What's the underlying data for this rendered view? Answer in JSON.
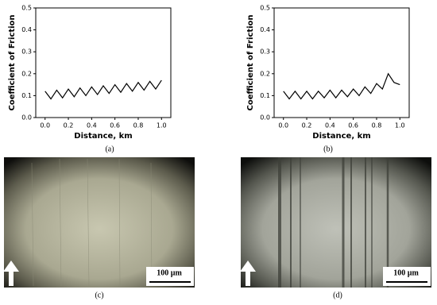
{
  "chart_data": [
    {
      "type": "line",
      "caption": "(a)",
      "xlabel": "Distance, km",
      "ylabel": "Coefficient of Friction",
      "color": "#000000",
      "x": [
        0,
        0.05,
        0.1,
        0.15,
        0.2,
        0.25,
        0.3,
        0.35,
        0.4,
        0.45,
        0.5,
        0.55,
        0.6,
        0.65,
        0.7,
        0.75,
        0.8,
        0.85,
        0.9,
        0.95,
        1.0
      ],
      "values": [
        0.12,
        0.085,
        0.125,
        0.09,
        0.13,
        0.095,
        0.135,
        0.1,
        0.14,
        0.105,
        0.145,
        0.11,
        0.15,
        0.115,
        0.155,
        0.12,
        0.16,
        0.125,
        0.165,
        0.13,
        0.17
      ],
      "xlim": [
        -0.08,
        1.08
      ],
      "ylim": [
        0,
        0.5
      ],
      "xticks": [
        {
          "value": 0,
          "label": "0.0"
        },
        0.2,
        0.4,
        0.6,
        0.8,
        {
          "value": 1,
          "label": "1.0"
        }
      ],
      "yticks": [
        {
          "value": 0,
          "label": "0.0"
        },
        0.1,
        0.2,
        0.3,
        0.4,
        0.5
      ]
    },
    {
      "type": "line",
      "caption": "(b)",
      "xlabel": "Distance, km",
      "ylabel": "Coefficient of Friction",
      "color": "#000000",
      "x": [
        0,
        0.05,
        0.1,
        0.15,
        0.2,
        0.25,
        0.3,
        0.35,
        0.4,
        0.45,
        0.5,
        0.55,
        0.6,
        0.65,
        0.7,
        0.75,
        0.8,
        0.85,
        0.9,
        0.95,
        1.0
      ],
      "values": [
        0.12,
        0.085,
        0.12,
        0.085,
        0.12,
        0.085,
        0.12,
        0.09,
        0.125,
        0.09,
        0.125,
        0.095,
        0.13,
        0.1,
        0.14,
        0.11,
        0.155,
        0.13,
        0.2,
        0.16,
        0.15
      ],
      "xlim": [
        -0.08,
        1.08
      ],
      "ylim": [
        0,
        0.5
      ],
      "xticks": [
        {
          "value": 0,
          "label": "0.0"
        },
        0.2,
        0.4,
        0.6,
        0.8,
        {
          "value": 1,
          "label": "1.0"
        }
      ],
      "yticks": [
        {
          "value": 0,
          "label": "0.0"
        },
        0.1,
        0.2,
        0.3,
        0.4,
        0.5
      ]
    }
  ],
  "micrographs": [
    {
      "caption": "(c)",
      "scale_bar": "100 µm"
    },
    {
      "caption": "(d)",
      "scale_bar": "100 µm"
    }
  ]
}
